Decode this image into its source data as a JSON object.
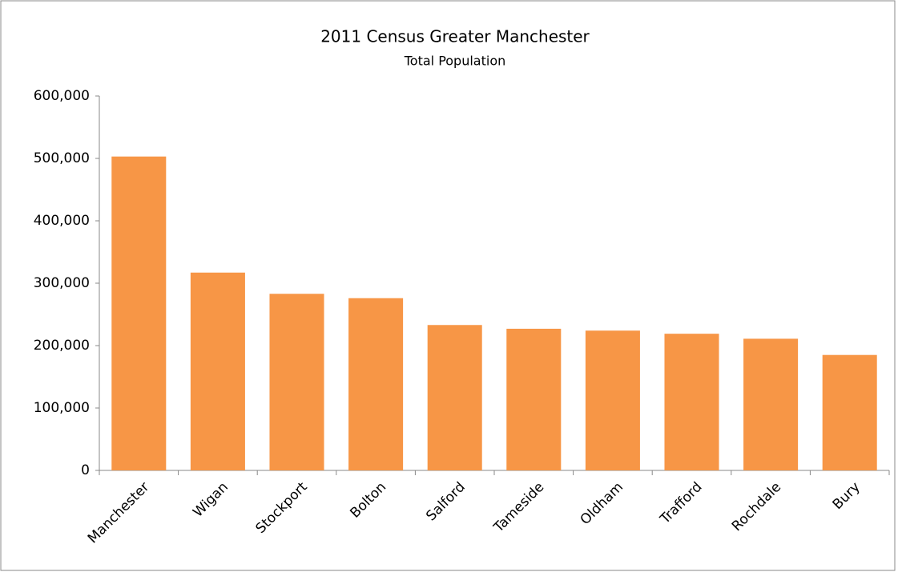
{
  "chart_data": {
    "type": "bar",
    "title": "2011 Census Greater Manchester",
    "subtitle": "Total Population",
    "categories": [
      "Manchester",
      "Wigan",
      "Stockport",
      "Bolton",
      "Salford",
      "Tameside",
      "Oldham",
      "Trafford",
      "Rochdale",
      "Bury"
    ],
    "values": [
      503000,
      317000,
      283000,
      276000,
      233000,
      227000,
      224000,
      219000,
      211000,
      185000
    ],
    "color": "#f79646",
    "ylim": [
      0,
      600000
    ],
    "yticks": [
      0,
      {
        "value": 100000,
        "label": "100,000"
      },
      {
        "value": 200000,
        "label": "200,000"
      },
      {
        "value": 300000,
        "label": "300,000"
      },
      {
        "value": 400000,
        "label": "400,000"
      },
      {
        "value": 500000,
        "label": "500,000"
      },
      {
        "value": 600000,
        "label": "600,000"
      }
    ],
    "grid": false
  }
}
